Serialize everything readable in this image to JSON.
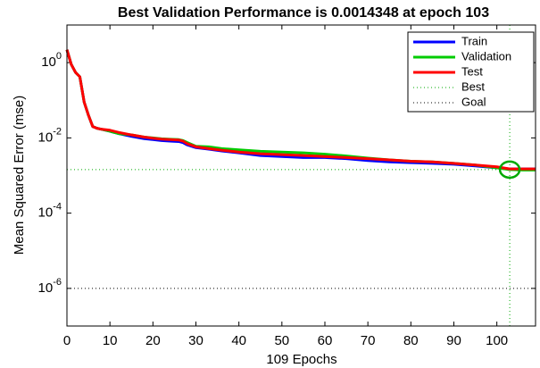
{
  "chart_data": {
    "type": "line",
    "title": "Best Validation Performance is 0.0014348 at epoch 103",
    "x_label": "109 Epochs",
    "y_label": "Mean Squared Error  (mse)",
    "log_y": true,
    "xlim": [
      0,
      109
    ],
    "xticks": [
      0,
      10,
      20,
      30,
      40,
      50,
      60,
      70,
      80,
      90,
      100
    ],
    "ylim": [
      1e-07,
      10
    ],
    "yticks": [
      {
        "value": 1e-06,
        "label": "10^-6"
      },
      {
        "value": 0.0001,
        "label": "10^-4"
      },
      {
        "value": 0.01,
        "label": "10^-2"
      },
      {
        "value": 1,
        "label": "10^0"
      }
    ],
    "legend_position": "upper right",
    "x": [
      0,
      1,
      2,
      3,
      4,
      5,
      6,
      7,
      8,
      10,
      12,
      15,
      18,
      20,
      22,
      24,
      26,
      27,
      28,
      30,
      33,
      36,
      40,
      45,
      50,
      55,
      60,
      65,
      70,
      75,
      80,
      85,
      90,
      95,
      100,
      103,
      106,
      109
    ],
    "series": [
      {
        "name": "Train",
        "color": "#0000ff",
        "values": [
          2.2,
          0.9,
          0.55,
          0.42,
          0.09,
          0.04,
          0.02,
          0.018,
          0.017,
          0.015,
          0.013,
          0.011,
          0.0095,
          0.009,
          0.0085,
          0.0082,
          0.008,
          0.0075,
          0.0065,
          0.0055,
          0.005,
          0.0045,
          0.004,
          0.0034,
          0.0032,
          0.003,
          0.003,
          0.0028,
          0.0025,
          0.0023,
          0.0022,
          0.0021,
          0.002,
          0.0018,
          0.0016,
          0.0015,
          0.0015,
          0.0015
        ]
      },
      {
        "name": "Validation",
        "color": "#00cc00",
        "values": [
          2.2,
          0.9,
          0.55,
          0.42,
          0.09,
          0.04,
          0.02,
          0.018,
          0.017,
          0.015,
          0.013,
          0.012,
          0.0105,
          0.01,
          0.0095,
          0.0092,
          0.009,
          0.0085,
          0.0075,
          0.006,
          0.0058,
          0.0052,
          0.0048,
          0.0044,
          0.0042,
          0.004,
          0.0037,
          0.0033,
          0.0029,
          0.0026,
          0.0024,
          0.0023,
          0.0021,
          0.0019,
          0.0016,
          0.0014348,
          0.0014,
          0.0014
        ]
      },
      {
        "name": "Test",
        "color": "#ff0000",
        "values": [
          2.2,
          0.9,
          0.55,
          0.42,
          0.09,
          0.04,
          0.02,
          0.018,
          0.017,
          0.016,
          0.014,
          0.012,
          0.0105,
          0.0098,
          0.0093,
          0.009,
          0.0088,
          0.0082,
          0.007,
          0.0058,
          0.0052,
          0.0047,
          0.0042,
          0.0038,
          0.0036,
          0.0034,
          0.0032,
          0.003,
          0.0028,
          0.0026,
          0.0024,
          0.0023,
          0.0021,
          0.0019,
          0.0017,
          0.0015,
          0.0015,
          0.0015
        ]
      }
    ],
    "best": {
      "name": "Best",
      "x": 103,
      "y": 0.0014348,
      "color": "#00aa00"
    },
    "goal": {
      "name": "Goal",
      "y": 1e-06,
      "color": "#000000"
    }
  }
}
